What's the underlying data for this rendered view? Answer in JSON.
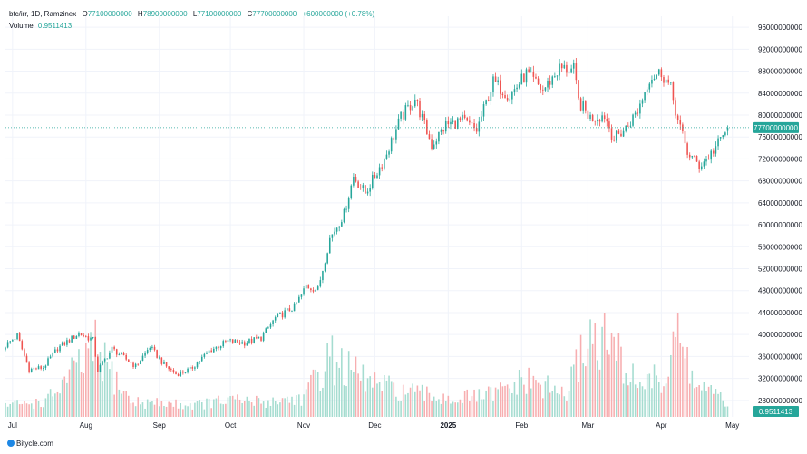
{
  "legend": {
    "symbol": "btc/irr, 1D, Ramzinex",
    "o_label": "O",
    "o_value": "77100000000",
    "h_label": "H",
    "h_value": "78900000000",
    "l_label": "L",
    "l_value": "77100000000",
    "c_label": "C",
    "c_value": "77700000000",
    "change": "+600000000 (+0.78%)",
    "volume_label": "Volume",
    "volume_value": "0.9511413"
  },
  "footer": {
    "logo_text": "Bitycle.com"
  },
  "colors": {
    "up": "#26a69a",
    "down": "#ef5350",
    "vol_up": "#a5dcd0",
    "vol_down": "#f7aeb0",
    "last_price_tag": "#26a69a",
    "axis_text": "#131722"
  },
  "chart_data": {
    "type": "candlestick",
    "title": "btc/irr, 1D, Ramzinex",
    "y_axis": {
      "position": "right",
      "range": [
        25000000000,
        98000000000
      ],
      "ticks": [
        "28000000000",
        "32000000000",
        "36000000000",
        "40000000000",
        "44000000000",
        "48000000000",
        "52000000000",
        "56000000000",
        "60000000000",
        "64000000000",
        "68000000000",
        "72000000000",
        "76000000000",
        "80000000000",
        "84000000000",
        "88000000000",
        "92000000000",
        "96000000000"
      ]
    },
    "x_axis": {
      "labels": [
        {
          "text": "Jul",
          "date": "2024-07-01"
        },
        {
          "text": "Aug",
          "date": "2024-08-01"
        },
        {
          "text": "Sep",
          "date": "2024-09-01"
        },
        {
          "text": "Oct",
          "date": "2024-10-01"
        },
        {
          "text": "Nov",
          "date": "2024-11-01"
        },
        {
          "text": "Dec",
          "date": "2024-12-01"
        },
        {
          "text": "2025",
          "date": "2025-01-01"
        },
        {
          "text": "Feb",
          "date": "2025-02-01"
        },
        {
          "text": "Mar",
          "date": "2025-03-01"
        },
        {
          "text": "Apr",
          "date": "2025-04-01"
        },
        {
          "text": "May",
          "date": "2025-05-01"
        }
      ]
    },
    "last_price": "77700000000",
    "last_volume": "0.9511413",
    "grid": true,
    "close_path": [
      {
        "date": "2024-06-28",
        "close": 38000000000
      },
      {
        "date": "2024-07-03",
        "close": 39800000000
      },
      {
        "date": "2024-07-08",
        "close": 33600000000
      },
      {
        "date": "2024-07-14",
        "close": 34000000000
      },
      {
        "date": "2024-07-20",
        "close": 37500000000
      },
      {
        "date": "2024-07-29",
        "close": 40200000000
      },
      {
        "date": "2024-08-04",
        "close": 39000000000
      },
      {
        "date": "2024-08-06",
        "close": 33500000000
      },
      {
        "date": "2024-08-12",
        "close": 37400000000
      },
      {
        "date": "2024-08-22",
        "close": 34200000000
      },
      {
        "date": "2024-08-28",
        "close": 37800000000
      },
      {
        "date": "2024-09-03",
        "close": 34500000000
      },
      {
        "date": "2024-09-08",
        "close": 32800000000
      },
      {
        "date": "2024-09-14",
        "close": 33600000000
      },
      {
        "date": "2024-09-22",
        "close": 37000000000
      },
      {
        "date": "2024-09-30",
        "close": 38800000000
      },
      {
        "date": "2024-10-07",
        "close": 38500000000
      },
      {
        "date": "2024-10-14",
        "close": 39400000000
      },
      {
        "date": "2024-10-20",
        "close": 43000000000
      },
      {
        "date": "2024-10-28",
        "close": 45000000000
      },
      {
        "date": "2024-11-02",
        "close": 48800000000
      },
      {
        "date": "2024-11-07",
        "close": 48200000000
      },
      {
        "date": "2024-11-12",
        "close": 57500000000
      },
      {
        "date": "2024-11-18",
        "close": 62000000000
      },
      {
        "date": "2024-11-22",
        "close": 68800000000
      },
      {
        "date": "2024-11-27",
        "close": 65800000000
      },
      {
        "date": "2024-12-05",
        "close": 72000000000
      },
      {
        "date": "2024-12-12",
        "close": 79500000000
      },
      {
        "date": "2024-12-18",
        "close": 83000000000
      },
      {
        "date": "2024-12-25",
        "close": 74500000000
      },
      {
        "date": "2024-12-31",
        "close": 78200000000
      },
      {
        "date": "2025-01-07",
        "close": 79000000000
      },
      {
        "date": "2025-01-13",
        "close": 77200000000
      },
      {
        "date": "2025-01-20",
        "close": 86000000000
      },
      {
        "date": "2025-01-27",
        "close": 83500000000
      },
      {
        "date": "2025-02-03",
        "close": 87500000000
      },
      {
        "date": "2025-02-10",
        "close": 84500000000
      },
      {
        "date": "2025-02-17",
        "close": 88500000000
      },
      {
        "date": "2025-02-23",
        "close": 88200000000
      },
      {
        "date": "2025-02-25",
        "close": 82500000000
      },
      {
        "date": "2025-03-02",
        "close": 79500000000
      },
      {
        "date": "2025-03-08",
        "close": 80000000000
      },
      {
        "date": "2025-03-12",
        "close": 75600000000
      },
      {
        "date": "2025-03-17",
        "close": 77600000000
      },
      {
        "date": "2025-03-22",
        "close": 80800000000
      },
      {
        "date": "2025-03-27",
        "close": 86800000000
      },
      {
        "date": "2025-04-01",
        "close": 87800000000
      },
      {
        "date": "2025-04-05",
        "close": 84800000000
      },
      {
        "date": "2025-04-08",
        "close": 79000000000
      },
      {
        "date": "2025-04-12",
        "close": 73200000000
      },
      {
        "date": "2025-04-17",
        "close": 70800000000
      },
      {
        "date": "2025-04-21",
        "close": 72400000000
      },
      {
        "date": "2025-04-25",
        "close": 74800000000
      },
      {
        "date": "2025-04-29",
        "close": 77700000000
      }
    ],
    "volume_path": [
      {
        "date": "2024-06-28",
        "volume": 0.8
      },
      {
        "date": "2024-07-15",
        "volume": 1.0
      },
      {
        "date": "2024-08-05",
        "volume": 4.5
      },
      {
        "date": "2024-08-20",
        "volume": 1.0
      },
      {
        "date": "2024-09-15",
        "volume": 0.8
      },
      {
        "date": "2024-10-01",
        "volume": 1.1
      },
      {
        "date": "2024-10-15",
        "volume": 1.0
      },
      {
        "date": "2024-11-01",
        "volume": 1.3
      },
      {
        "date": "2024-11-12",
        "volume": 4.0
      },
      {
        "date": "2024-11-25",
        "volume": 2.6
      },
      {
        "date": "2024-12-05",
        "volume": 2.0
      },
      {
        "date": "2024-12-20",
        "volume": 1.5
      },
      {
        "date": "2025-01-05",
        "volume": 1.2
      },
      {
        "date": "2025-01-20",
        "volume": 1.5
      },
      {
        "date": "2025-02-03",
        "volume": 2.4
      },
      {
        "date": "2025-02-20",
        "volume": 1.5
      },
      {
        "date": "2025-03-01",
        "volume": 5.5
      },
      {
        "date": "2025-03-10",
        "volume": 5.0
      },
      {
        "date": "2025-03-20",
        "volume": 2.5
      },
      {
        "date": "2025-04-03",
        "volume": 2.4
      },
      {
        "date": "2025-04-07",
        "volume": 6.2
      },
      {
        "date": "2025-04-15",
        "volume": 2.2
      },
      {
        "date": "2025-04-29",
        "volume": 0.95
      }
    ]
  }
}
